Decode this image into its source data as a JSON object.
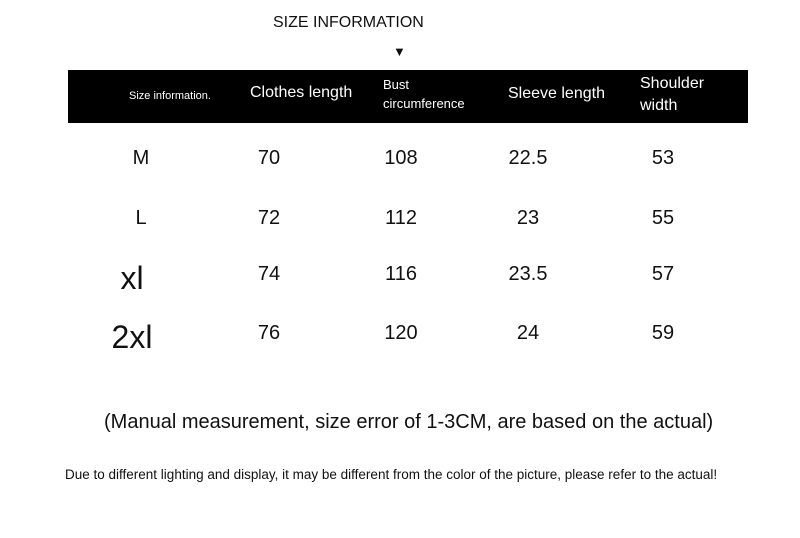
{
  "title": "SIZE INFORMATION",
  "arrow_icon": "down-triangle-icon",
  "headers": [
    "Size information.",
    "Clothes length",
    "Bust circumference",
    "Sleeve length",
    "Shoulder width"
  ],
  "rows": [
    [
      "M",
      "70",
      "108",
      "22.5",
      "53"
    ],
    [
      "L",
      "72",
      "112",
      "23",
      "55"
    ],
    [
      "xl",
      "74",
      "116",
      "23.5",
      "57"
    ],
    [
      "2xl",
      "76",
      "120",
      "24",
      "59"
    ]
  ],
  "note": "(Manual measurement, size error of 1-3CM, are based on the actual)",
  "disclaimer": "Due to different lighting and display, it may be different from the color of the picture, please refer to the actual!"
}
